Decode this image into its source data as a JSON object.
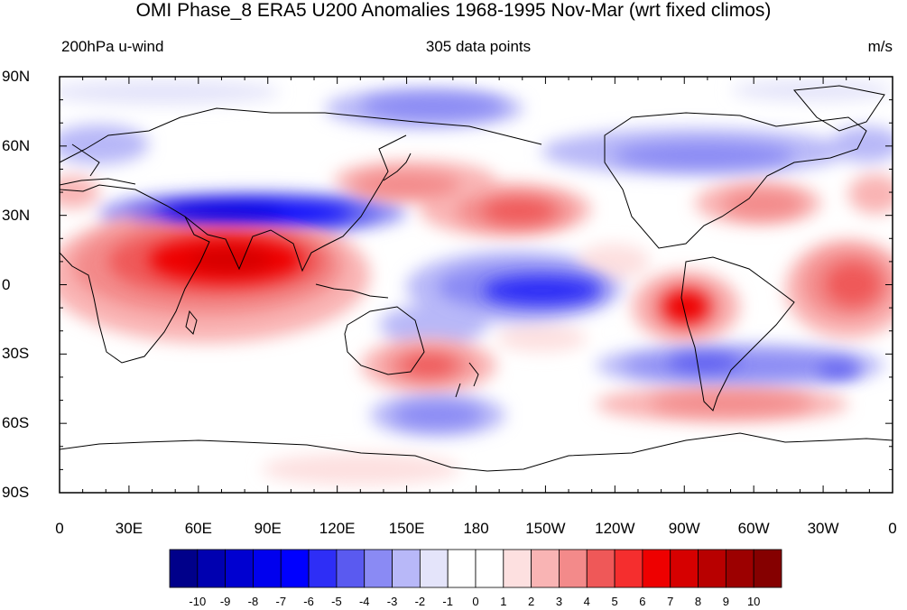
{
  "title": "OMI Phase_8 ERA5 U200 Anomalies 1968-1995 Nov-Mar (wrt fixed climos)",
  "subtitle_left": "200hPa u-wind",
  "subtitle_center": "305 data points",
  "subtitle_right": "m/s",
  "lat_labels": [
    "90N",
    "60N",
    "30N",
    "0",
    "30S",
    "60S",
    "90S"
  ],
  "lon_labels": [
    "0",
    "30E",
    "60E",
    "90E",
    "120E",
    "150E",
    "180",
    "150W",
    "120W",
    "90W",
    "60W",
    "30W",
    "0"
  ],
  "colorbar": {
    "labels": [
      "-10",
      "-9",
      "-8",
      "-7",
      "-6",
      "-5",
      "-4",
      "-3",
      "-2",
      "-1",
      "0",
      "1",
      "2",
      "3",
      "4",
      "5",
      "6",
      "7",
      "8",
      "9",
      "10"
    ],
    "colors": [
      "#00008a",
      "#0000b0",
      "#0000d0",
      "#0000ee",
      "#0000ff",
      "#2e2ef6",
      "#5a5af0",
      "#8a8af4",
      "#b8b8f8",
      "#e4e4fa",
      "#ffffff",
      "#ffffff",
      "#fde0e0",
      "#f9b4b4",
      "#f38a8a",
      "#ef5858",
      "#f52e2e",
      "#ee0000",
      "#d60000",
      "#b80000",
      "#9c0000",
      "#850000"
    ]
  }
}
